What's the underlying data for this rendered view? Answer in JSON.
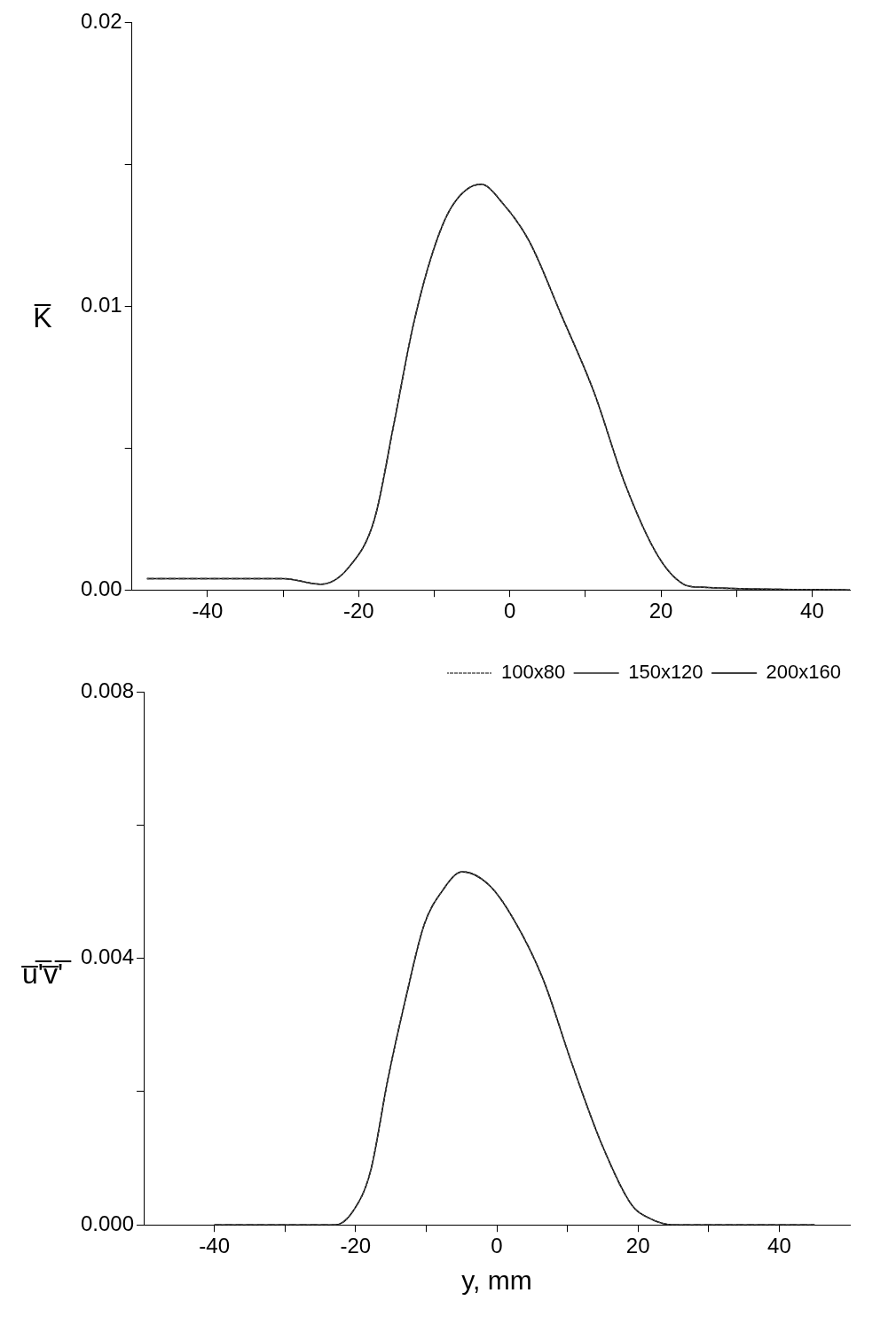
{
  "chart_data": [
    {
      "type": "line",
      "ylabel": "K̅",
      "xlim": [
        -50,
        45
      ],
      "xticks": [
        -40,
        {
          "value": -30,
          "label": null
        },
        -20,
        {
          "value": -10,
          "label": null
        },
        0,
        {
          "value": 10,
          "label": null
        },
        20,
        {
          "value": 30,
          "label": null
        },
        40
      ],
      "ylim": [
        0,
        0.02
      ],
      "yticks": [
        {
          "value": 0,
          "label": "0.00"
        },
        {
          "value": 0.005,
          "label": null
        },
        0.01,
        {
          "value": 0.015,
          "label": null
        },
        0.02
      ],
      "grid": false,
      "legend": false,
      "marker": "none",
      "x": [
        -48,
        -30,
        -25,
        -21.3,
        -17.9,
        -15.3,
        -12.8,
        -10.2,
        -7.7,
        -3.8,
        -0.85,
        2.55,
        6.8,
        11.1,
        15.3,
        19.6,
        23,
        25,
        45
      ],
      "series": [
        {
          "color": "#555555",
          "line_style": "dotted",
          "values": [
            0.0004,
            0.0004,
            0.0002,
            0.0008,
            0.0025,
            0.0059,
            0.0093,
            0.0119,
            0.0135,
            0.0143,
            0.0136,
            0.0123,
            0.0097,
            0.007,
            0.0037,
            0.0012,
            0.0002,
            0.0001,
            0
          ]
        },
        {
          "color": "#222222",
          "line_style": "dashed",
          "values": [
            0.0004,
            0.0004,
            0.0002,
            0.0008,
            0.0025,
            0.0059,
            0.0093,
            0.0119,
            0.0135,
            0.0143,
            0.0136,
            0.0123,
            0.0097,
            0.007,
            0.0037,
            0.0012,
            0.0002,
            0.0001,
            0
          ]
        },
        {
          "color": "#000000",
          "line_style": "solid",
          "values": [
            0.0004,
            0.0004,
            0.0002,
            0.0008,
            0.0025,
            0.0059,
            0.0093,
            0.0119,
            0.0135,
            0.0143,
            0.0136,
            0.0123,
            0.0097,
            0.007,
            0.0037,
            0.0012,
            0.0002,
            0.0001,
            0
          ]
        }
      ]
    },
    {
      "type": "line",
      "xlabel": "y, mm",
      "ylabel": "u̅'̅v̅'̅",
      "xlim": [
        -50,
        50
      ],
      "xticks": [
        -40,
        {
          "value": -30,
          "label": null
        },
        -20,
        {
          "value": -10,
          "label": null
        },
        0,
        {
          "value": 10,
          "label": null
        },
        20,
        {
          "value": 30,
          "label": null
        },
        40
      ],
      "ylim": [
        0,
        0.008
      ],
      "yticks": [
        {
          "value": 0,
          "label": "0.000"
        },
        {
          "value": 0.002,
          "label": null
        },
        0.004,
        {
          "value": 0.006,
          "label": null
        },
        0.008
      ],
      "grid": false,
      "legend": "top right",
      "marker": "none",
      "x": [
        -40,
        -30,
        -22.9,
        -20.4,
        -17.9,
        -15.4,
        -12.9,
        -10.3,
        -7.8,
        -4.9,
        -1.1,
        2.3,
        6.5,
        10.7,
        14.9,
        19.1,
        21.6,
        25,
        45
      ],
      "series": [
        {
          "name": "100x80",
          "color": "#555555",
          "line_style": "dotted",
          "values": [
            0,
            0,
            0,
            0.0002,
            0.0008,
            0.0022,
            0.0034,
            0.0045,
            0.005,
            0.0053,
            0.0051,
            0.0046,
            0.0037,
            0.0024,
            0.0012,
            0.0003,
            0.0001,
            0,
            0
          ]
        },
        {
          "name": "150x120",
          "color": "#222222",
          "line_style": "dashed",
          "values": [
            0,
            0,
            0,
            0.0002,
            0.0008,
            0.0022,
            0.0034,
            0.0045,
            0.005,
            0.0053,
            0.0051,
            0.0046,
            0.0037,
            0.0024,
            0.0012,
            0.0003,
            0.0001,
            0,
            0
          ]
        },
        {
          "name": "200x160",
          "color": "#000000",
          "line_style": "solid",
          "values": [
            0,
            0,
            0,
            0.0002,
            0.0008,
            0.0022,
            0.0034,
            0.0045,
            0.005,
            0.0053,
            0.0051,
            0.0046,
            0.0037,
            0.0024,
            0.0012,
            0.0003,
            0.0001,
            0,
            0
          ]
        }
      ]
    }
  ]
}
